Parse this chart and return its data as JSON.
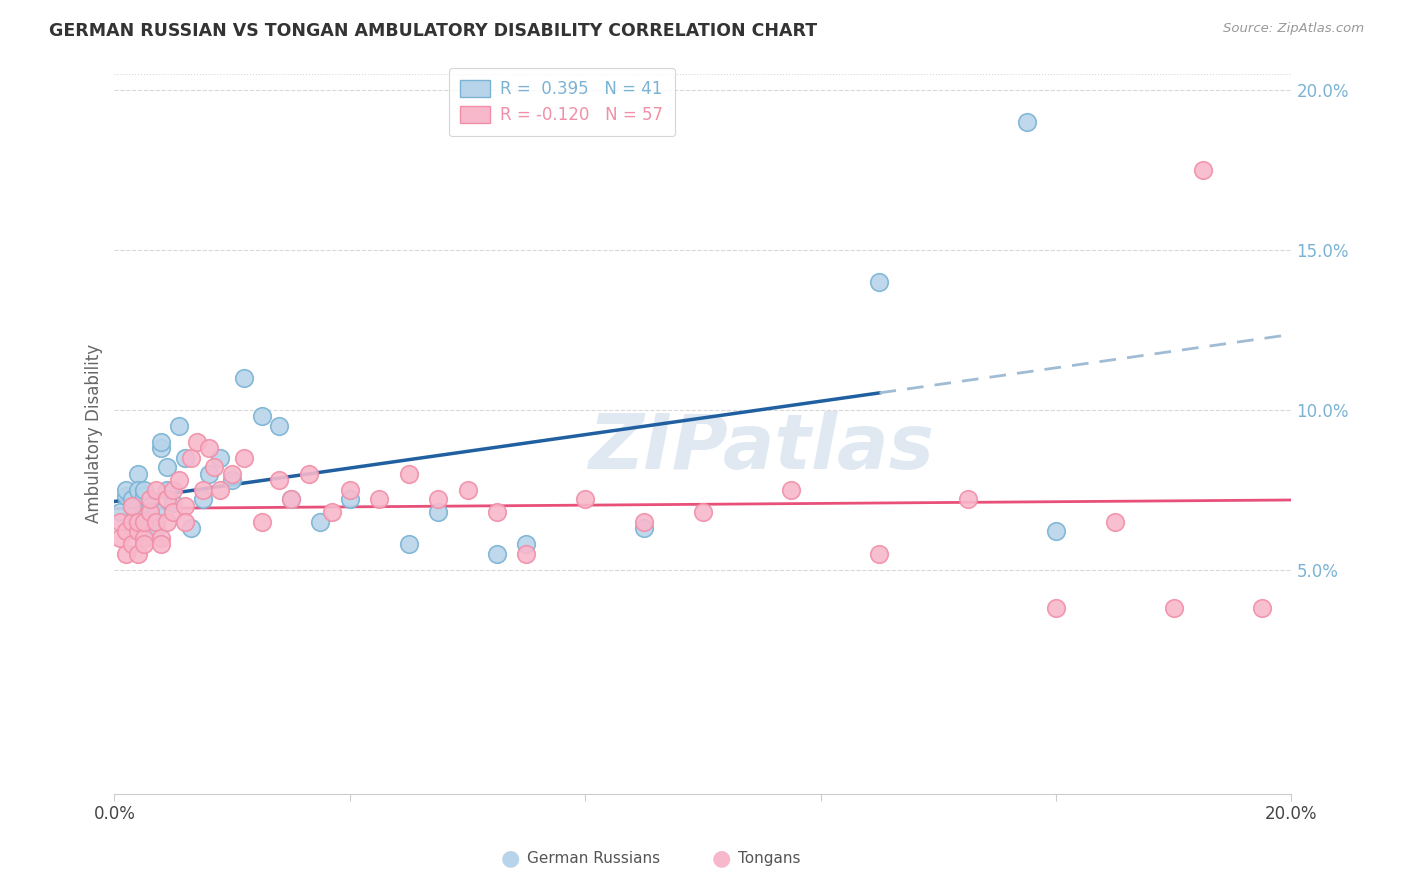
{
  "title": "GERMAN RUSSIAN VS TONGAN AMBULATORY DISABILITY CORRELATION CHART",
  "source": "Source: ZipAtlas.com",
  "ylabel": "Ambulatory Disability",
  "watermark": "ZIPatlas",
  "xmin": 0.0,
  "xmax": 0.2,
  "ymin": -0.02,
  "ymax": 0.205,
  "yticks": [
    0.05,
    0.1,
    0.15,
    0.2
  ],
  "ytick_labels": [
    "5.0%",
    "10.0%",
    "15.0%",
    "20.0%"
  ],
  "xtick_labels_map": {
    "0.0": "0.0%",
    "0.2": "20.0%"
  },
  "blue_color": "#7ab3d4",
  "pink_color": "#f090a8",
  "blue_fill": "#b8d4ea",
  "pink_fill": "#f8b8cc",
  "trend_blue": "#2060a0",
  "trend_pink": "#e8507a",
  "trend_dashed_color": "#a0bcd4",
  "background_color": "#ffffff",
  "grid_color": "#d8d8d8",
  "gr_legend_label": "R =  0.395   N = 41",
  "to_legend_label": "R = -0.120   N = 57",
  "bottom_legend_gr": "German Russians",
  "bottom_legend_to": "Tongans",
  "gr_x": [
    0.001,
    0.002,
    0.002,
    0.003,
    0.003,
    0.003,
    0.004,
    0.004,
    0.005,
    0.005,
    0.005,
    0.006,
    0.006,
    0.007,
    0.007,
    0.008,
    0.008,
    0.009,
    0.009,
    0.01,
    0.011,
    0.012,
    0.013,
    0.015,
    0.016,
    0.018,
    0.02,
    0.022,
    0.025,
    0.028,
    0.03,
    0.035,
    0.04,
    0.05,
    0.055,
    0.065,
    0.07,
    0.09,
    0.13,
    0.155,
    0.16
  ],
  "gr_y": [
    0.068,
    0.073,
    0.075,
    0.07,
    0.065,
    0.072,
    0.08,
    0.075,
    0.073,
    0.068,
    0.075,
    0.07,
    0.065,
    0.068,
    0.063,
    0.088,
    0.09,
    0.082,
    0.075,
    0.071,
    0.095,
    0.085,
    0.063,
    0.072,
    0.08,
    0.085,
    0.078,
    0.11,
    0.098,
    0.095,
    0.072,
    0.065,
    0.072,
    0.058,
    0.068,
    0.055,
    0.058,
    0.063,
    0.14,
    0.19,
    0.062
  ],
  "to_x": [
    0.001,
    0.001,
    0.002,
    0.002,
    0.003,
    0.003,
    0.003,
    0.004,
    0.004,
    0.004,
    0.005,
    0.005,
    0.005,
    0.006,
    0.006,
    0.007,
    0.007,
    0.008,
    0.008,
    0.009,
    0.009,
    0.01,
    0.01,
    0.011,
    0.012,
    0.012,
    0.013,
    0.014,
    0.015,
    0.016,
    0.017,
    0.018,
    0.02,
    0.022,
    0.025,
    0.028,
    0.03,
    0.033,
    0.037,
    0.04,
    0.045,
    0.05,
    0.055,
    0.06,
    0.065,
    0.07,
    0.08,
    0.09,
    0.1,
    0.115,
    0.13,
    0.145,
    0.16,
    0.17,
    0.18,
    0.185,
    0.195
  ],
  "to_y": [
    0.065,
    0.06,
    0.062,
    0.055,
    0.065,
    0.07,
    0.058,
    0.062,
    0.065,
    0.055,
    0.06,
    0.058,
    0.065,
    0.068,
    0.072,
    0.065,
    0.075,
    0.06,
    0.058,
    0.072,
    0.065,
    0.068,
    0.075,
    0.078,
    0.07,
    0.065,
    0.085,
    0.09,
    0.075,
    0.088,
    0.082,
    0.075,
    0.08,
    0.085,
    0.065,
    0.078,
    0.072,
    0.08,
    0.068,
    0.075,
    0.072,
    0.08,
    0.072,
    0.075,
    0.068,
    0.055,
    0.072,
    0.065,
    0.068,
    0.075,
    0.055,
    0.072,
    0.038,
    0.065,
    0.038,
    0.175,
    0.038
  ],
  "blue_trend_solid_end": 0.13,
  "blue_trend_b0": 0.065,
  "blue_trend_b1": 0.62,
  "pink_trend_b0": 0.073,
  "pink_trend_b1": -0.14
}
